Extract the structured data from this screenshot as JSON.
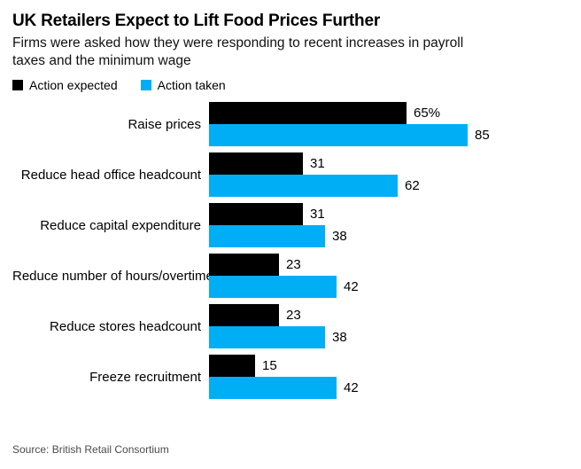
{
  "header": {
    "title": "UK Retailers Expect to Lift Food Prices Further",
    "subtitle_lines": [
      "Firms were asked how they were responding to recent increases in payroll",
      "taxes and the minimum wage"
    ]
  },
  "chart_data": {
    "type": "bar",
    "orientation": "horizontal",
    "title": "UK Retailers Expect to Lift Food Prices Further",
    "subtitle": "Firms were asked how they were responding to recent increases in payroll taxes and the minimum wage",
    "categories": [
      "Raise prices",
      "Reduce head office headcount",
      "Reduce capital expenditure",
      "Reduce number of hours/overtime",
      "Reduce stores headcount",
      "Freeze recruitment"
    ],
    "series": [
      {
        "name": "Action expected",
        "color": "#000000",
        "values": [
          65,
          31,
          31,
          23,
          23,
          15
        ],
        "labels": [
          "65%",
          "31",
          "31",
          "23",
          "23",
          "15"
        ]
      },
      {
        "name": "Action taken",
        "color": "#00AEF5",
        "values": [
          85,
          62,
          38,
          42,
          38,
          42
        ],
        "labels": [
          "85",
          "62",
          "38",
          "42",
          "38",
          "42"
        ]
      }
    ],
    "xlim": [
      0,
      85
    ],
    "grid": false,
    "value_labels_shown": true,
    "legend_position": "top-left",
    "unit": "%"
  },
  "footer": {
    "source": "Source: British Retail Consortium"
  }
}
